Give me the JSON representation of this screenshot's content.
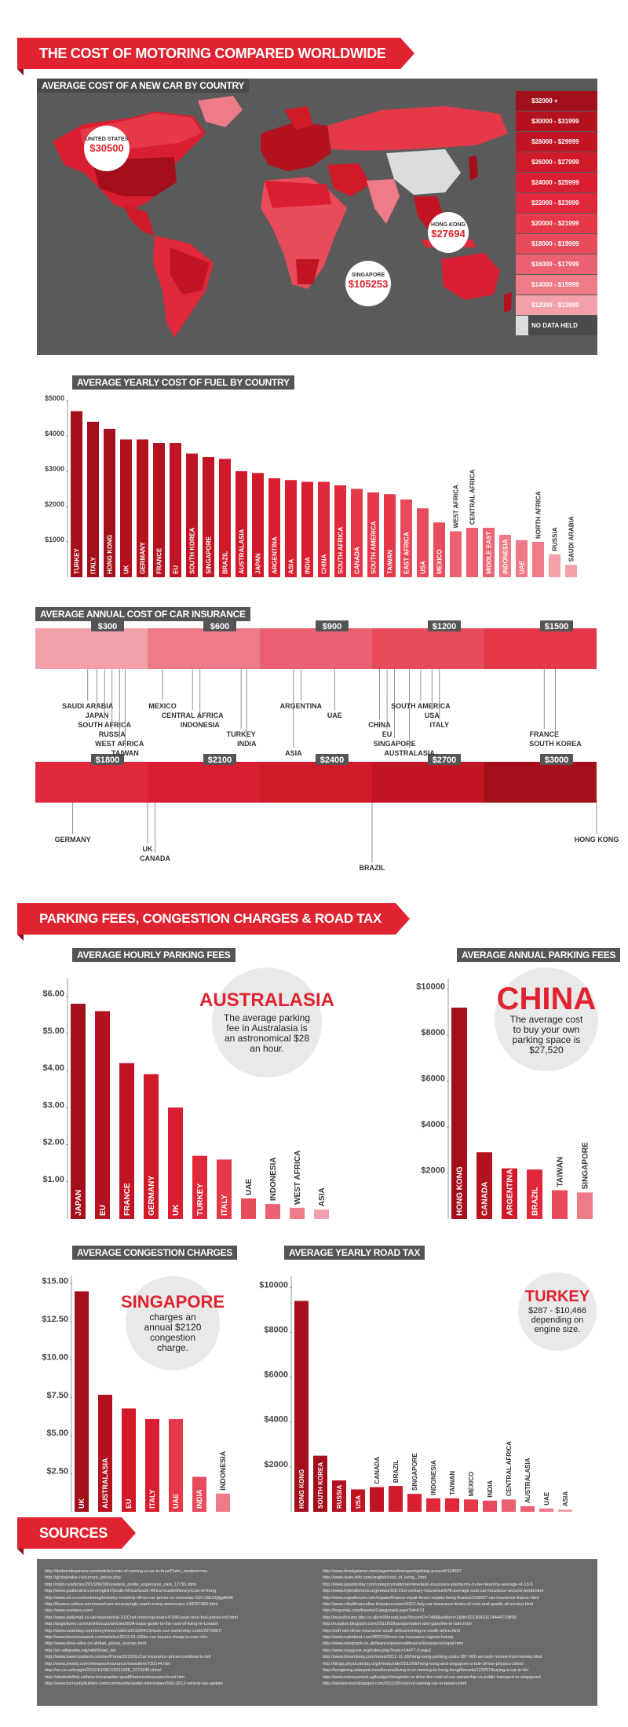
{
  "title": "THE COST OF MOTORING COMPARED WORLDWIDE",
  "map": {
    "label": "AVERAGE COST OF A NEW CAR BY COUNTRY",
    "legend": [
      "$32000 +",
      "$30000 - $31999",
      "$28000 - $29999",
      "$26000 - $27999",
      "$24000 - $25999",
      "$22000 - $23999",
      "$20000 - $21999",
      "$18000 - $19999",
      "$16000 - $17999",
      "$14000 - $15999",
      "$12000 - $13999",
      "NO DATA HELD"
    ],
    "legend_colors": [
      "#a3101b",
      "#b4121f",
      "#c21524",
      "#d01929",
      "#d91e31",
      "#e0283a",
      "#e53848",
      "#e84b5b",
      "#ec6171",
      "#ef7a88",
      "#f3a0ab",
      "#dcdcdc"
    ],
    "callouts": [
      {
        "name": "UNITED STATES",
        "value": "$30500"
      },
      {
        "name": "HONG KONG",
        "value": "$27694"
      },
      {
        "name": "SINGAPORE",
        "value": "$105253"
      }
    ]
  },
  "fuel": {
    "label": "AVERAGE YEARLY COST OF FUEL BY COUNTRY",
    "chart_data": {
      "type": "bar",
      "categories": [
        "TURKEY",
        "ITALY",
        "HONG KONG",
        "UK",
        "GERMANY",
        "FRANCE",
        "EU",
        "SOUTH KOREA",
        "SINGAPORE",
        "BRAZIL",
        "AUSTRALASIA",
        "JAPAN",
        "ARGENTINA",
        "ASIA",
        "INDIA",
        "CHINA",
        "SOUTH AFRICA",
        "CANADA",
        "SOUTH AMERICA",
        "TAIWAN",
        "EAST AFRICA",
        "USA",
        "MEXICO",
        "WEST AFRICA",
        "CENTRAL AFRICA",
        "MIDDLE EAST",
        "INDONESIA",
        "UAE",
        "NORTH AFRICA",
        "RUSSIA",
        "SAUDI ARABIA"
      ],
      "values": [
        4700,
        4400,
        4200,
        3900,
        3900,
        3800,
        3800,
        3500,
        3400,
        3350,
        3000,
        2950,
        2800,
        2750,
        2700,
        2700,
        2600,
        2500,
        2400,
        2350,
        2200,
        1950,
        1550,
        1300,
        1400,
        1400,
        1200,
        1050,
        1000,
        650,
        350
      ],
      "ylim": [
        0,
        5000
      ],
      "ticks": [
        "$1000",
        "$2000",
        "$3000",
        "$4000",
        "$5000"
      ]
    }
  },
  "insurance": {
    "label": "AVERAGE ANNUAL COST OF CAR INSURANCE",
    "scale1": [
      "$300",
      "$600",
      "$900",
      "$1200",
      "$1500"
    ],
    "scale2": [
      "$1800",
      "$2100",
      "$2400",
      "$2700",
      "$3000"
    ],
    "chart_data": {
      "type": "bar",
      "categories": [
        "SAUDI ARABIA",
        "JAPAN",
        "SOUTH AFRICA",
        "RUSSIA",
        "WEST AFRICA",
        "TAIWAN",
        "MEXICO",
        "CENTRAL AFRICA",
        "INDONESIA",
        "TURKEY",
        "INDIA",
        "ASIA",
        "ARGENTINA",
        "UAE",
        "CHINA",
        "EU",
        "SINGAPORE",
        "AUSTRALASIA",
        "SOUTH AMERICA",
        "USA",
        "ITALY",
        "FRANCE",
        "SOUTH KOREA",
        "GERMANY",
        "UK",
        "CANADA",
        "BRAZIL",
        "HONG KONG"
      ],
      "values": [
        140,
        165,
        185,
        205,
        225,
        240,
        340,
        420,
        440,
        550,
        565,
        690,
        710,
        800,
        920,
        940,
        960,
        1000,
        1030,
        1060,
        1080,
        1360,
        1390,
        1600,
        1800,
        1820,
        2400,
        3000
      ]
    }
  },
  "parking_title": "PARKING FEES, CONGESTION CHARGES & ROAD TAX",
  "hourly": {
    "label": "AVERAGE HOURLY PARKING FEES",
    "chart_data": {
      "type": "bar",
      "categories": [
        "JAPAN",
        "EU",
        "FRANCE",
        "GERMANY",
        "UK",
        "TURKEY",
        "ITALY",
        "UAE",
        "INDONESIA",
        "WEST AFRICA",
        "ASIA"
      ],
      "values": [
        5.8,
        5.6,
        4.2,
        3.9,
        3.0,
        1.7,
        1.6,
        0.55,
        0.4,
        0.3,
        0.25
      ],
      "ylim": [
        0,
        6.5
      ],
      "ticks": [
        "$1.00",
        "$2.00",
        "$3.00",
        "$4.00",
        "$5.00",
        "$6.00"
      ]
    },
    "callout": {
      "heading": "AUSTRALASIA",
      "text": "The average parking fee in Australasia is an astronomical $28 an hour."
    }
  },
  "annual": {
    "label": "AVERAGE ANNUAL PARKING FEES",
    "chart_data": {
      "type": "bar",
      "categories": [
        "HONG KONG",
        "CANADA",
        "ARGENTINA",
        "BRAZIL",
        "TAIWAN",
        "SINGAPORE"
      ],
      "values": [
        9200,
        2900,
        2200,
        2150,
        1250,
        1150
      ],
      "ylim": [
        0,
        10500
      ],
      "ticks": [
        "$2000",
        "$4000",
        "$6000",
        "$8000",
        "$10000"
      ]
    },
    "callout": {
      "heading": "CHINA",
      "text": "The average cost to buy your own parking space is $27,520"
    }
  },
  "congestion": {
    "label": "AVERAGE CONGESTION CHARGES",
    "chart_data": {
      "type": "bar",
      "categories": [
        "UK",
        "AUSTRALASIA",
        "EU",
        "ITALY",
        "UAE",
        "INDIA",
        "INDONESIA"
      ],
      "values": [
        14.5,
        7.7,
        6.8,
        6.1,
        6.1,
        2.3,
        1.2
      ],
      "ylim": [
        0,
        15.5
      ],
      "ticks": [
        "$2.50",
        "$5.00",
        "$7.50",
        "$10.00",
        "$12.50",
        "$15.00"
      ]
    },
    "callout": {
      "heading": "SINGAPORE",
      "text": "charges an annual $2120 congestion charge."
    }
  },
  "roadtax": {
    "label": "AVERAGE YEARLY ROAD TAX",
    "chart_data": {
      "type": "bar",
      "categories": [
        "HONG KONG",
        "SOUTH KOREA",
        "RUSSIA",
        "USA",
        "CANADA",
        "BRAZIL",
        "SINGAPORE",
        "INDONESIA",
        "TAIWAN",
        "MEXICO",
        "INDIA",
        "CENTRAL AFRICA",
        "AUSTRALASIA",
        "UAE",
        "ASIA"
      ],
      "values": [
        9400,
        2500,
        1400,
        1000,
        1100,
        1150,
        800,
        600,
        600,
        550,
        500,
        550,
        250,
        150,
        100
      ],
      "ylim": [
        0,
        10500
      ],
      "ticks": [
        "$2000",
        "$4000",
        "$6000",
        "$8000",
        "$10000"
      ]
    },
    "callout": {
      "heading": "TURKEY",
      "text": "$287 - $10,466 depending on engine size."
    }
  },
  "sources_title": "SOURCES",
  "sources": {
    "left": [
      "http://thebricsbusiness.com/article/costs-of-owning-a-car-in-brazil?utm_medium=rss",
      "http://globalvalue.ru/current_prices.php",
      "http://mkb.ru/articles/2013/06/03/russians_prefer_expensive_cars_17791.html",
      "http://www.justlanded.com/english/South-Africa/South-Africa-Guide/Money/Cost-of-living",
      "http://www.sd.co.za/motoring/industry-news/rip-off-sa-car-prices-vs-overseas-ISX.U6ESQlgpfkN6",
      "http://finance.yahoo.com/news/cars-increasingly-reach-many-americans-143057680.html",
      "http://www.numbeo.com/",
      "http://www.dailymail.co.uk/news/article-21/Cost-motoring-soars-6-990-year-time-fuel-prices-roll.html",
      "http://anglolivery.com/uk/infobuzz/articles/56/A-basic-guide-to-the-cost-of-living-in-London",
      "http://www.usatoday.com/story/news/nation/2013/04/16/auto-car-ownership-costs/2070097/",
      "http://www.businessweek.com/articles/2013-01-03/for-car-buyers-cheap-is-now-chic",
      "http://www.drive-alive.co.uk/fuel_prices_europe.html",
      "http://en.wikipedia.org/wiki/Road_tax",
      "http://www.towerswatson.com/en/Press/2012/01/Car-insurance-prices-continue-to-fall",
      "http://www.jmweb.com/releases/insurance/newsitem/730144.htm",
      "http://wi.ca.ca/insight/2011/10/08/1/2011008_2274240.shtml",
      "http://studentsfirst.ca/how-to/canadian-grad/finances/insurance/cost.htm",
      "http://www.bcmunitybulletin.com/community/useful-information/593-2013-vehicle-tax-update"
    ],
    "right": [
      "http://www.timelyplanet.com/argentina/transport/getting-around#118687",
      "http://www.siam-info.com/english/cost_of_living_.html",
      "http://www.japantoday.com/category/national/view/auto-insurance-premiums-to-be-hiked-by-average-of-13-5",
      "http://www.hybridforums.org/news/103-21st-century-insurance/678-average-cost-car-insurance-around-world.html",
      "http://www.expatforum.com/expats/finance-expat-forum-expats-living-finance/103097-car-insurance-france.html",
      "http://www.oftadfinancelive.it/assicurazioni/4312-italy-car-insurance-levels-of-cost-and-quality-of-service.html",
      "http://fxsportal.com/forums/Categoryidl.aspx?id=673",
      "http://newsforums.bbc.co.uk/nol/thread.jspa?forumID=7488&edition=1&ttl=20130410174444710899",
      "http://ruspiice.blogspot.com/2011/03/transportation-and-gasoline-in-sahi.html",
      "http://soft-wel.nl/car-insurance-south-africa/moving-to-south-africa.html",
      "http://www.nairaland.com/387019/cost-car-insurance-nigeria-honda",
      "http://www.telegraph.co.uk/finance/personalfinance/insurance/nepal.html",
      "http://www.waygook.org/index.php?topic=14477.0;wap2",
      "http://www.bloomberg.com/news/2012-11-26/hong-kong-parking-costs-387-000-as-cash-moves-from-homes.html",
      "http://blogs.physicstoday.org/thedayside/2011/06/hong-kong-and-singapore-a-tale-of-two-physics-cities/",
      "http://hongkong.asiaxpat.com/forums/living-in-or-moving-to-hong-kong/threads/123257/buying-a-car-in-hk/",
      "http://www.moneysmart.sg/budget-living/rate-or-drive-the-cost-of-car-ownership-vs-public-transport-in-singapore/",
      "http://taiwanroost.blogspot.com/2012/05/cost-of-owning-car-in-taiwan.html"
    ]
  }
}
